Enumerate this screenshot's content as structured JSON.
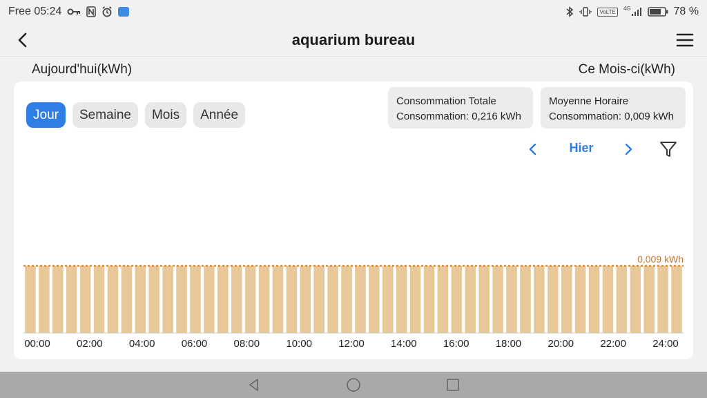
{
  "status_bar": {
    "carrier_time": "Free 05:24",
    "battery_percent": "78 %",
    "network_badge": "VoLTE",
    "network_type": "4G"
  },
  "app_bar": {
    "title": "aquarium bureau",
    "back_icon": "chevron-left-icon",
    "menu_icon": "hamburger-menu-icon"
  },
  "header": {
    "left_label": "Aujourd'hui(kWh)",
    "right_label": "Ce Mois-ci(kWh)"
  },
  "tabs": [
    {
      "label": "Jour",
      "active": true
    },
    {
      "label": "Semaine",
      "active": false
    },
    {
      "label": "Mois",
      "active": false
    },
    {
      "label": "Année",
      "active": false
    }
  ],
  "stats": {
    "total": {
      "title": "Consommation Totale",
      "value": "Consommation: 0,216 kWh"
    },
    "average": {
      "title": "Moyenne Horaire",
      "value": "Consommation: 0,009 kWh"
    }
  },
  "date_nav": {
    "label": "Hier"
  },
  "colors": {
    "accent": "#2f7ee3",
    "bar": "#e8c898",
    "average_line": "#d07a2a"
  },
  "chart_data": {
    "type": "bar",
    "average_label": "0,009 kWh",
    "average_value": 0.009,
    "tick_labels": [
      "00:00",
      "02:00",
      "04:00",
      "06:00",
      "08:00",
      "10:00",
      "12:00",
      "14:00",
      "16:00",
      "18:00",
      "20:00",
      "22:00",
      "24:00"
    ],
    "values": [
      0.009,
      0.009,
      0.009,
      0.009,
      0.009,
      0.009,
      0.009,
      0.009,
      0.009,
      0.009,
      0.009,
      0.009,
      0.009,
      0.009,
      0.009,
      0.009,
      0.009,
      0.009,
      0.009,
      0.009,
      0.009,
      0.009,
      0.009,
      0.009,
      0.009,
      0.009,
      0.009,
      0.009,
      0.009,
      0.009,
      0.009,
      0.009,
      0.009,
      0.009,
      0.009,
      0.009,
      0.009,
      0.009,
      0.009,
      0.009,
      0.009,
      0.009,
      0.009,
      0.009,
      0.009,
      0.009,
      0.009,
      0.009
    ],
    "ylim": [
      0,
      0.01
    ]
  }
}
